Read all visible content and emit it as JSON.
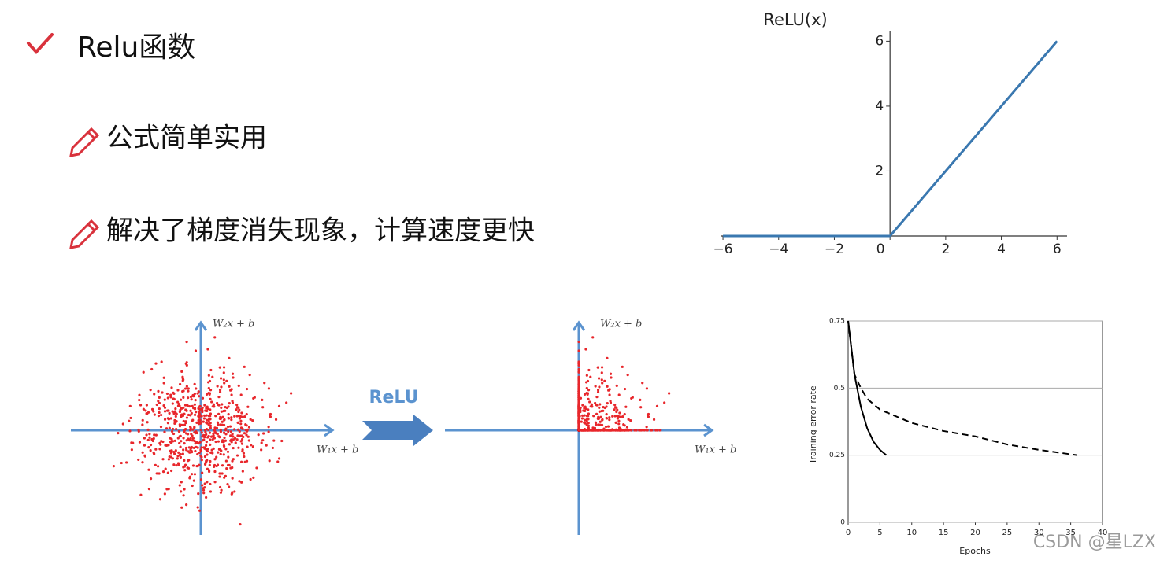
{
  "heading": "Relu函数",
  "bullets": [
    "公式简单实用",
    "解决了梯度消失现象，计算速度更快"
  ],
  "diagram": {
    "before": {
      "y_label": "W₂x + b",
      "x_label": "W₁x + b"
    },
    "arrow_label": "ReLU",
    "after": {
      "y_label": "W₂x + b",
      "x_label": "W₁x + b"
    }
  },
  "watermark": "CSDN @星LZX",
  "chart_data": [
    {
      "type": "line",
      "title": "ReLU(x)",
      "x": [
        -6,
        0,
        6
      ],
      "values": [
        0,
        0,
        6
      ],
      "color": "#3a78b0",
      "xlim": [
        -6.07,
        6.36
      ],
      "ylim": [
        0,
        6.3
      ],
      "xticks": [
        {
          "value": -6,
          "label": "−6"
        },
        {
          "value": -4,
          "label": "−4"
        },
        {
          "value": -2,
          "label": "−2"
        },
        0,
        2,
        4,
        6
      ],
      "yticks": [
        2,
        4,
        6
      ],
      "grid": false
    },
    {
      "type": "line",
      "xlabel": "Epochs",
      "ylabel": "Training error rate",
      "x": [
        0,
        1,
        2,
        3,
        4,
        5,
        6,
        8,
        10,
        15,
        20,
        25,
        30,
        36
      ],
      "series": [
        {
          "color": "#000000",
          "dashed": false,
          "values": [
            0.75,
            0.55,
            0.43,
            0.35,
            0.3,
            0.27,
            0.25,
            null,
            null,
            null,
            null,
            null,
            null,
            null
          ]
        },
        {
          "color": "#000000",
          "dashed": true,
          "values": [
            0.75,
            0.55,
            0.5,
            0.46,
            0.44,
            0.42,
            0.41,
            0.39,
            0.37,
            0.34,
            0.32,
            0.29,
            0.27,
            0.25
          ]
        }
      ],
      "xlim": [
        0,
        40
      ],
      "ylim": [
        0,
        0.75
      ],
      "xticks": [
        0,
        5,
        10,
        15,
        20,
        25,
        30,
        35,
        40
      ],
      "yticks": [
        0,
        0.25,
        0.5,
        0.75
      ],
      "grid": true
    }
  ]
}
